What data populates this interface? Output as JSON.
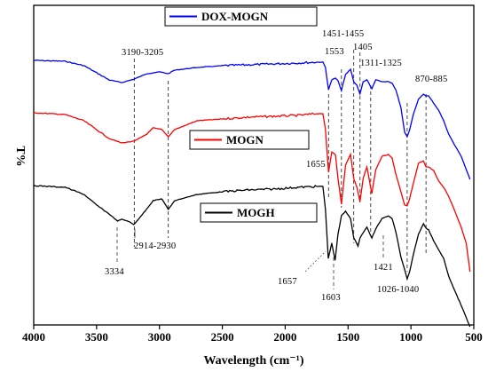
{
  "chart_data": {
    "type": "line",
    "xlabel": "Wavelength (cm⁻¹)",
    "ylabel": "T%",
    "xlim": [
      4000,
      500
    ],
    "x_reversed": true,
    "xticks": [
      "4000",
      "3500",
      "3000",
      "2500",
      "2000",
      "1500",
      "1000",
      "500"
    ],
    "grid": false,
    "series": [
      {
        "name": "DOX-MOGN",
        "color": "#0000ff",
        "points": [
          [
            4000,
            62
          ],
          [
            3750,
            63
          ],
          [
            3600,
            68
          ],
          [
            3500,
            76
          ],
          [
            3400,
            84
          ],
          [
            3300,
            87
          ],
          [
            3200,
            83
          ],
          [
            3100,
            77
          ],
          [
            3000,
            75
          ],
          [
            2930,
            77
          ],
          [
            2880,
            73
          ],
          [
            2700,
            70
          ],
          [
            2500,
            68
          ],
          [
            2300,
            67
          ],
          [
            2100,
            66
          ],
          [
            1900,
            65
          ],
          [
            1750,
            64
          ],
          [
            1700,
            64
          ],
          [
            1680,
            70
          ],
          [
            1655,
            95
          ],
          [
            1630,
            84
          ],
          [
            1600,
            82
          ],
          [
            1580,
            85
          ],
          [
            1553,
            96
          ],
          [
            1520,
            78
          ],
          [
            1480,
            72
          ],
          [
            1455,
            86
          ],
          [
            1430,
            90
          ],
          [
            1405,
            100
          ],
          [
            1380,
            86
          ],
          [
            1350,
            84
          ],
          [
            1311,
            94
          ],
          [
            1280,
            84
          ],
          [
            1230,
            86
          ],
          [
            1180,
            86
          ],
          [
            1150,
            88
          ],
          [
            1120,
            95
          ],
          [
            1080,
            115
          ],
          [
            1050,
            143
          ],
          [
            1030,
            148
          ],
          [
            1010,
            140
          ],
          [
            980,
            122
          ],
          [
            940,
            106
          ],
          [
            900,
            100
          ],
          [
            880,
            102
          ],
          [
            860,
            102
          ],
          [
            820,
            110
          ],
          [
            780,
            118
          ],
          [
            740,
            130
          ],
          [
            700,
            145
          ],
          [
            650,
            158
          ],
          [
            600,
            170
          ],
          [
            560,
            185
          ],
          [
            530,
            196
          ]
        ]
      },
      {
        "name": "MOGN",
        "color": "#ff0000",
        "points": [
          [
            4000,
            121
          ],
          [
            3750,
            123
          ],
          [
            3600,
            130
          ],
          [
            3500,
            140
          ],
          [
            3400,
            150
          ],
          [
            3300,
            155
          ],
          [
            3200,
            153
          ],
          [
            3100,
            145
          ],
          [
            3050,
            138
          ],
          [
            2980,
            140
          ],
          [
            2930,
            148
          ],
          [
            2880,
            140
          ],
          [
            2700,
            130
          ],
          [
            2500,
            128
          ],
          [
            2300,
            126
          ],
          [
            2100,
            125
          ],
          [
            1900,
            124
          ],
          [
            1750,
            122
          ],
          [
            1700,
            122
          ],
          [
            1680,
            140
          ],
          [
            1655,
            188
          ],
          [
            1630,
            165
          ],
          [
            1600,
            168
          ],
          [
            1580,
            195
          ],
          [
            1553,
            224
          ],
          [
            1520,
            180
          ],
          [
            1480,
            168
          ],
          [
            1455,
            195
          ],
          [
            1430,
            205
          ],
          [
            1405,
            221
          ],
          [
            1380,
            195
          ],
          [
            1350,
            182
          ],
          [
            1311,
            212
          ],
          [
            1280,
            185
          ],
          [
            1230,
            170
          ],
          [
            1180,
            168
          ],
          [
            1150,
            172
          ],
          [
            1120,
            190
          ],
          [
            1080,
            210
          ],
          [
            1050,
            225
          ],
          [
            1030,
            226
          ],
          [
            1010,
            218
          ],
          [
            980,
            200
          ],
          [
            940,
            178
          ],
          [
            900,
            175
          ],
          [
            880,
            182
          ],
          [
            860,
            182
          ],
          [
            820,
            186
          ],
          [
            780,
            198
          ],
          [
            740,
            205
          ],
          [
            700,
            215
          ],
          [
            650,
            232
          ],
          [
            600,
            250
          ],
          [
            560,
            268
          ],
          [
            530,
            300
          ]
        ]
      },
      {
        "name": "MOGH",
        "color": "#000000",
        "points": [
          [
            4000,
            203
          ],
          [
            3750,
            205
          ],
          [
            3600,
            213
          ],
          [
            3500,
            225
          ],
          [
            3400,
            235
          ],
          [
            3334,
            243
          ],
          [
            3300,
            241
          ],
          [
            3250,
            243
          ],
          [
            3205,
            247
          ],
          [
            3150,
            238
          ],
          [
            3050,
            220
          ],
          [
            2980,
            218
          ],
          [
            2930,
            230
          ],
          [
            2880,
            220
          ],
          [
            2700,
            213
          ],
          [
            2500,
            210
          ],
          [
            2300,
            208
          ],
          [
            2100,
            207
          ],
          [
            1900,
            205
          ],
          [
            1750,
            204
          ],
          [
            1700,
            204
          ],
          [
            1680,
            230
          ],
          [
            1657,
            285
          ],
          [
            1630,
            268
          ],
          [
            1603,
            287
          ],
          [
            1580,
            258
          ],
          [
            1553,
            237
          ],
          [
            1520,
            232
          ],
          [
            1480,
            240
          ],
          [
            1455,
            262
          ],
          [
            1421,
            271
          ],
          [
            1405,
            262
          ],
          [
            1380,
            256
          ],
          [
            1350,
            250
          ],
          [
            1311,
            262
          ],
          [
            1280,
            252
          ],
          [
            1230,
            240
          ],
          [
            1180,
            237
          ],
          [
            1150,
            240
          ],
          [
            1120,
            255
          ],
          [
            1080,
            283
          ],
          [
            1050,
            298
          ],
          [
            1030,
            308
          ],
          [
            1010,
            300
          ],
          [
            980,
            280
          ],
          [
            940,
            258
          ],
          [
            900,
            246
          ],
          [
            880,
            251
          ],
          [
            860,
            253
          ],
          [
            820,
            265
          ],
          [
            780,
            275
          ],
          [
            740,
            285
          ],
          [
            700,
            305
          ],
          [
            650,
            322
          ],
          [
            600,
            338
          ],
          [
            560,
            352
          ],
          [
            530,
            362
          ]
        ]
      }
    ],
    "annotations": [
      {
        "label": "3190-3205"
      },
      {
        "label": "1451-1455"
      },
      {
        "label": "1553"
      },
      {
        "label": "1405"
      },
      {
        "label": "1311-1325"
      },
      {
        "label": "870-885"
      },
      {
        "label": "1655"
      },
      {
        "label": "2914-2930"
      },
      {
        "label": "3334"
      },
      {
        "label": "1657"
      },
      {
        "label": "1603"
      },
      {
        "label": "1421"
      },
      {
        "label": "1026-1040"
      }
    ],
    "legend": [
      "DOX-MOGN",
      "MOGN",
      "MOGH"
    ],
    "reference_lines": [
      3200,
      2930,
      1655,
      1553,
      1455,
      1405,
      1320,
      1030,
      880
    ]
  }
}
